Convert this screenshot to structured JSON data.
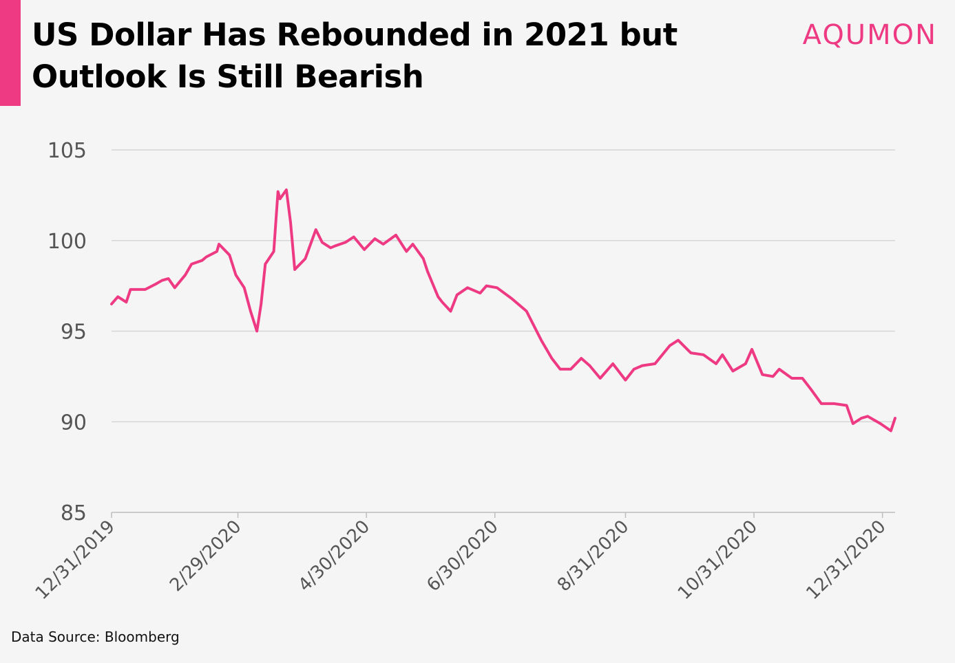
{
  "title_lines": [
    "US Dollar Has Rebounded in 2021 but",
    "Outlook Is Still Bearish"
  ],
  "brand": "AQUMON",
  "source": "Data Source: Bloomberg",
  "colors": {
    "accent": "#ee3a83",
    "grid": "#d6d6d6",
    "axis_text": "#555555"
  },
  "chart_data": {
    "type": "line",
    "title": "US Dollar Has Rebounded in 2021 but Outlook Is Still Bearish",
    "xlabel": "",
    "ylabel": "",
    "ylim": [
      85,
      105
    ],
    "yticks": [
      85,
      90,
      95,
      100,
      105
    ],
    "x_range": [
      "2019-12-31",
      "2021-01-06"
    ],
    "x_tick_labels": [
      "12/31/2019",
      "2/29/2020",
      "4/30/2020",
      "6/30/2020",
      "8/31/2020",
      "10/31/2020",
      "12/31/2020"
    ],
    "x_tick_dates": [
      "2019-12-31",
      "2020-02-29",
      "2020-04-30",
      "2020-06-30",
      "2020-08-31",
      "2020-10-31",
      "2020-12-31"
    ],
    "grid": true,
    "series": [
      {
        "color": "#ee3a83",
        "x": [
          "2019-12-31",
          "2020-01-03",
          "2020-01-07",
          "2020-01-09",
          "2020-01-13",
          "2020-01-16",
          "2020-01-21",
          "2020-01-24",
          "2020-01-27",
          "2020-01-30",
          "2020-02-04",
          "2020-02-07",
          "2020-02-12",
          "2020-02-14",
          "2020-02-19",
          "2020-02-20",
          "2020-02-25",
          "2020-02-28",
          "2020-03-03",
          "2020-03-06",
          "2020-03-09",
          "2020-03-11",
          "2020-03-13",
          "2020-03-17",
          "2020-03-19",
          "2020-03-20",
          "2020-03-23",
          "2020-03-25",
          "2020-03-27",
          "2020-04-01",
          "2020-04-06",
          "2020-04-09",
          "2020-04-13",
          "2020-04-15",
          "2020-04-20",
          "2020-04-24",
          "2020-04-29",
          "2020-05-04",
          "2020-05-08",
          "2020-05-14",
          "2020-05-19",
          "2020-05-22",
          "2020-05-27",
          "2020-05-29",
          "2020-06-03",
          "2020-06-05",
          "2020-06-09",
          "2020-06-12",
          "2020-06-17",
          "2020-06-23",
          "2020-06-26",
          "2020-07-01",
          "2020-07-08",
          "2020-07-15",
          "2020-07-22",
          "2020-07-27",
          "2020-07-31",
          "2020-08-05",
          "2020-08-10",
          "2020-08-14",
          "2020-08-19",
          "2020-08-25",
          "2020-08-31",
          "2020-09-04",
          "2020-09-08",
          "2020-09-14",
          "2020-09-21",
          "2020-09-25",
          "2020-10-01",
          "2020-10-07",
          "2020-10-13",
          "2020-10-16",
          "2020-10-21",
          "2020-10-27",
          "2020-10-30",
          "2020-11-04",
          "2020-11-09",
          "2020-11-12",
          "2020-11-18",
          "2020-11-23",
          "2020-11-27",
          "2020-12-02",
          "2020-12-08",
          "2020-12-14",
          "2020-12-17",
          "2020-12-21",
          "2020-12-24",
          "2020-12-30",
          "2021-01-04",
          "2021-01-06"
        ],
        "values": [
          96.5,
          96.9,
          96.6,
          97.3,
          97.3,
          97.3,
          97.6,
          97.8,
          97.9,
          97.4,
          98.1,
          98.7,
          98.9,
          99.1,
          99.4,
          99.8,
          99.2,
          98.1,
          97.4,
          96.1,
          95.0,
          96.5,
          98.7,
          99.4,
          102.7,
          102.3,
          102.8,
          101.0,
          98.4,
          99.0,
          100.6,
          99.9,
          99.6,
          99.7,
          99.9,
          100.2,
          99.5,
          100.1,
          99.8,
          100.3,
          99.4,
          99.8,
          99.0,
          98.3,
          96.9,
          96.6,
          96.1,
          97.0,
          97.4,
          97.1,
          97.5,
          97.4,
          96.8,
          96.1,
          94.5,
          93.5,
          92.9,
          92.9,
          93.5,
          93.1,
          92.4,
          93.2,
          92.3,
          92.9,
          93.1,
          93.2,
          94.2,
          94.5,
          93.8,
          93.7,
          93.2,
          93.7,
          92.8,
          93.2,
          94.0,
          92.6,
          92.5,
          92.9,
          92.4,
          92.4,
          91.8,
          91.0,
          91.0,
          90.9,
          89.9,
          90.2,
          90.3,
          89.9,
          89.5,
          90.2
        ]
      }
    ]
  }
}
